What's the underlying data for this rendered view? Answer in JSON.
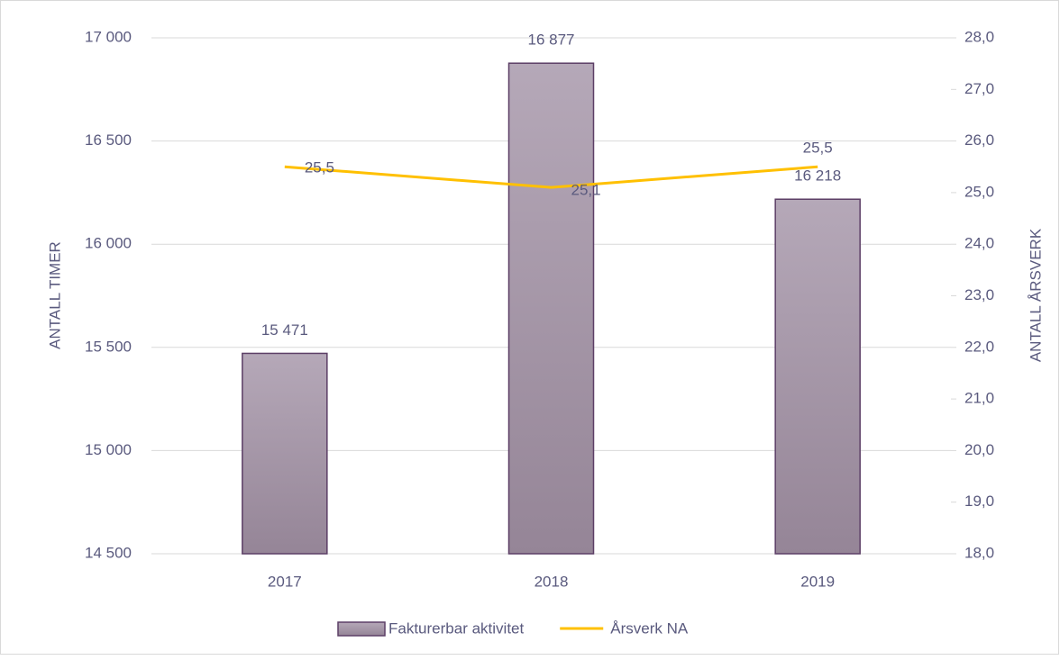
{
  "chart_data": {
    "type": "bar",
    "categories": [
      "2017",
      "2018",
      "2019"
    ],
    "series": [
      {
        "name": "Fakturerbar aktivitet",
        "type": "bar",
        "color": "#a797a9",
        "values": [
          15471,
          16877,
          16218
        ],
        "value_labels": [
          "15 471",
          "16 877",
          "16 218"
        ]
      },
      {
        "name": "Årsverk NA",
        "type": "line",
        "axis": "y2",
        "color": "#ffc000",
        "values": [
          25.5,
          25.1,
          25.5
        ],
        "value_labels": [
          "25,5",
          "25,1",
          "25,5"
        ]
      }
    ],
    "ylabel": "ANTALL TIMER",
    "y2label": "ANTALL ÅRSVERK",
    "ylim": [
      14500,
      17000
    ],
    "yticks": [
      {
        "value": 14500,
        "label": "14 500"
      },
      {
        "value": 15000,
        "label": "15 000"
      },
      {
        "value": 15500,
        "label": "15 500"
      },
      {
        "value": 16000,
        "label": "16 000"
      },
      {
        "value": 16500,
        "label": "16 500"
      },
      {
        "value": 17000,
        "label": "17 000"
      }
    ],
    "y2lim": [
      18,
      28
    ],
    "y2ticks": [
      {
        "value": 18,
        "label": "18,0"
      },
      {
        "value": 19,
        "label": "19,0"
      },
      {
        "value": 20,
        "label": "20,0"
      },
      {
        "value": 21,
        "label": "21,0"
      },
      {
        "value": 22,
        "label": "22,0"
      },
      {
        "value": 23,
        "label": "23,0"
      },
      {
        "value": 24,
        "label": "24,0"
      },
      {
        "value": 25,
        "label": "25,0"
      },
      {
        "value": 26,
        "label": "26,0"
      },
      {
        "value": 27,
        "label": "27,0"
      },
      {
        "value": 28,
        "label": "28,0"
      }
    ],
    "grid": true,
    "legend": "bottom"
  }
}
